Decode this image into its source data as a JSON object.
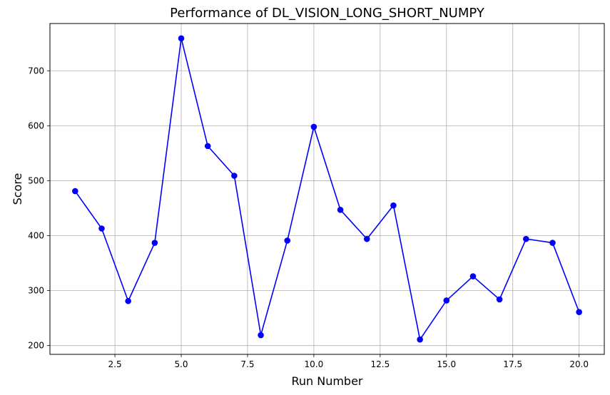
{
  "chart_data": {
    "type": "line",
    "title": "Performance of DL_VISION_LONG_SHORT_NUMPY",
    "xlabel": "Run Number",
    "ylabel": "Score",
    "x": [
      1,
      2,
      3,
      4,
      5,
      6,
      7,
      8,
      9,
      10,
      11,
      12,
      13,
      14,
      15,
      16,
      17,
      18,
      19,
      20
    ],
    "series": [
      {
        "values": [
          481,
          413,
          281,
          387,
          759,
          563,
          509,
          219,
          391,
          598,
          447,
          394,
          455,
          211,
          282,
          326,
          284,
          394,
          387,
          261
        ]
      }
    ],
    "xlim": [
      0.05,
      20.95
    ],
    "ylim": [
      184,
      786
    ],
    "xticks": [
      2.5,
      5.0,
      7.5,
      10.0,
      12.5,
      15.0,
      17.5,
      20.0
    ],
    "xtick_labels": [
      "2.5",
      "5.0",
      "7.5",
      "10.0",
      "12.5",
      "15.0",
      "17.5",
      "20.0"
    ],
    "yticks": [
      200,
      300,
      400,
      500,
      600,
      700
    ],
    "ytick_labels": [
      "200",
      "300",
      "400",
      "500",
      "600",
      "700"
    ],
    "grid": true,
    "line_color": "#0000ff",
    "marker": "circle",
    "grid_color": "#b0b0b0"
  }
}
